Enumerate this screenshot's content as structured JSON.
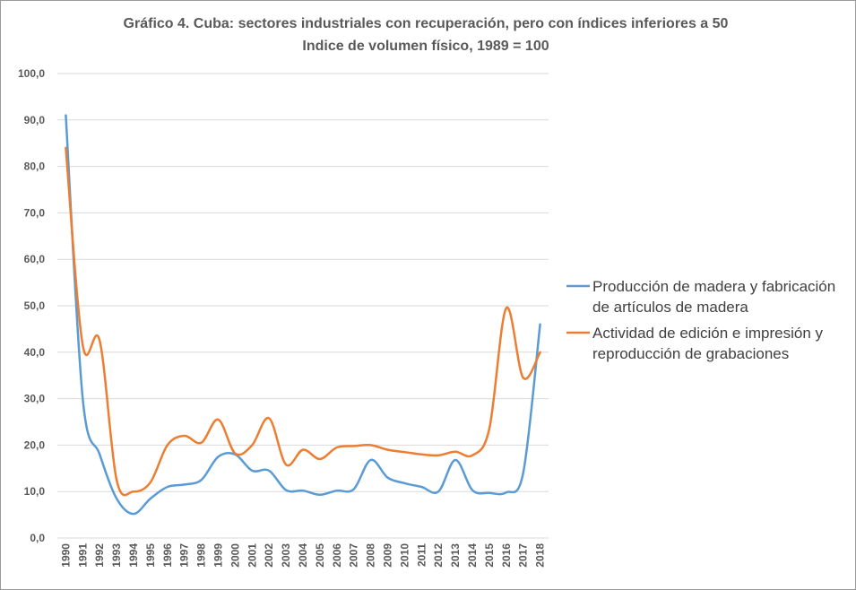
{
  "chart_data": {
    "type": "line",
    "title": "Gráfico 4. Cuba: sectores industriales con recuperación, pero con índices inferiores a 50",
    "subtitle": "Indice de volumen físico, 1989 = 100",
    "xlabel": "",
    "ylabel": "",
    "ylim": [
      0,
      100
    ],
    "y_ticks": [
      "0,0",
      "10,0",
      "20,0",
      "30,0",
      "40,0",
      "50,0",
      "60,0",
      "70,0",
      "80,0",
      "90,0",
      "100,0"
    ],
    "grid": true,
    "legend_position": "right",
    "x": [
      "1990",
      "1991",
      "1992",
      "1993",
      "1994",
      "1995",
      "1996",
      "1997",
      "1998",
      "1999",
      "2000",
      "2001",
      "2002",
      "2003",
      "2004",
      "2005",
      "2006",
      "2007",
      "2008",
      "2009",
      "2010",
      "2011",
      "2012",
      "2013",
      "2014",
      "2015",
      "2016",
      "2017",
      "2018"
    ],
    "series": [
      {
        "name": "Producción de madera y fabricación de artículos de madera",
        "legend_lines": [
          "Producción de madera y fabricación",
          "de artículos de madera"
        ],
        "color": "#5b9bd5",
        "values": [
          91.0,
          30.0,
          18.0,
          8.5,
          5.2,
          8.5,
          11.0,
          11.5,
          12.5,
          17.5,
          18.0,
          14.5,
          14.5,
          10.3,
          10.2,
          9.3,
          10.2,
          10.5,
          16.8,
          13.0,
          11.8,
          11.0,
          10.0,
          16.8,
          10.3,
          9.7,
          9.8,
          14.0,
          46.0
        ]
      },
      {
        "name": "Actividad de edición e impresión y reproducción de grabaciones",
        "legend_lines": [
          "Actividad de edición e impresión y",
          "reproducción de grabaciones"
        ],
        "color": "#ed7d31",
        "values": [
          84.0,
          41.5,
          42.5,
          12.5,
          10.0,
          12.0,
          20.0,
          22.0,
          20.5,
          25.5,
          18.2,
          20.0,
          25.8,
          15.8,
          19.0,
          17.0,
          19.5,
          19.8,
          20.0,
          19.0,
          18.5,
          18.0,
          17.8,
          18.6,
          17.8,
          23.5,
          49.5,
          34.5,
          40.0
        ]
      }
    ]
  }
}
